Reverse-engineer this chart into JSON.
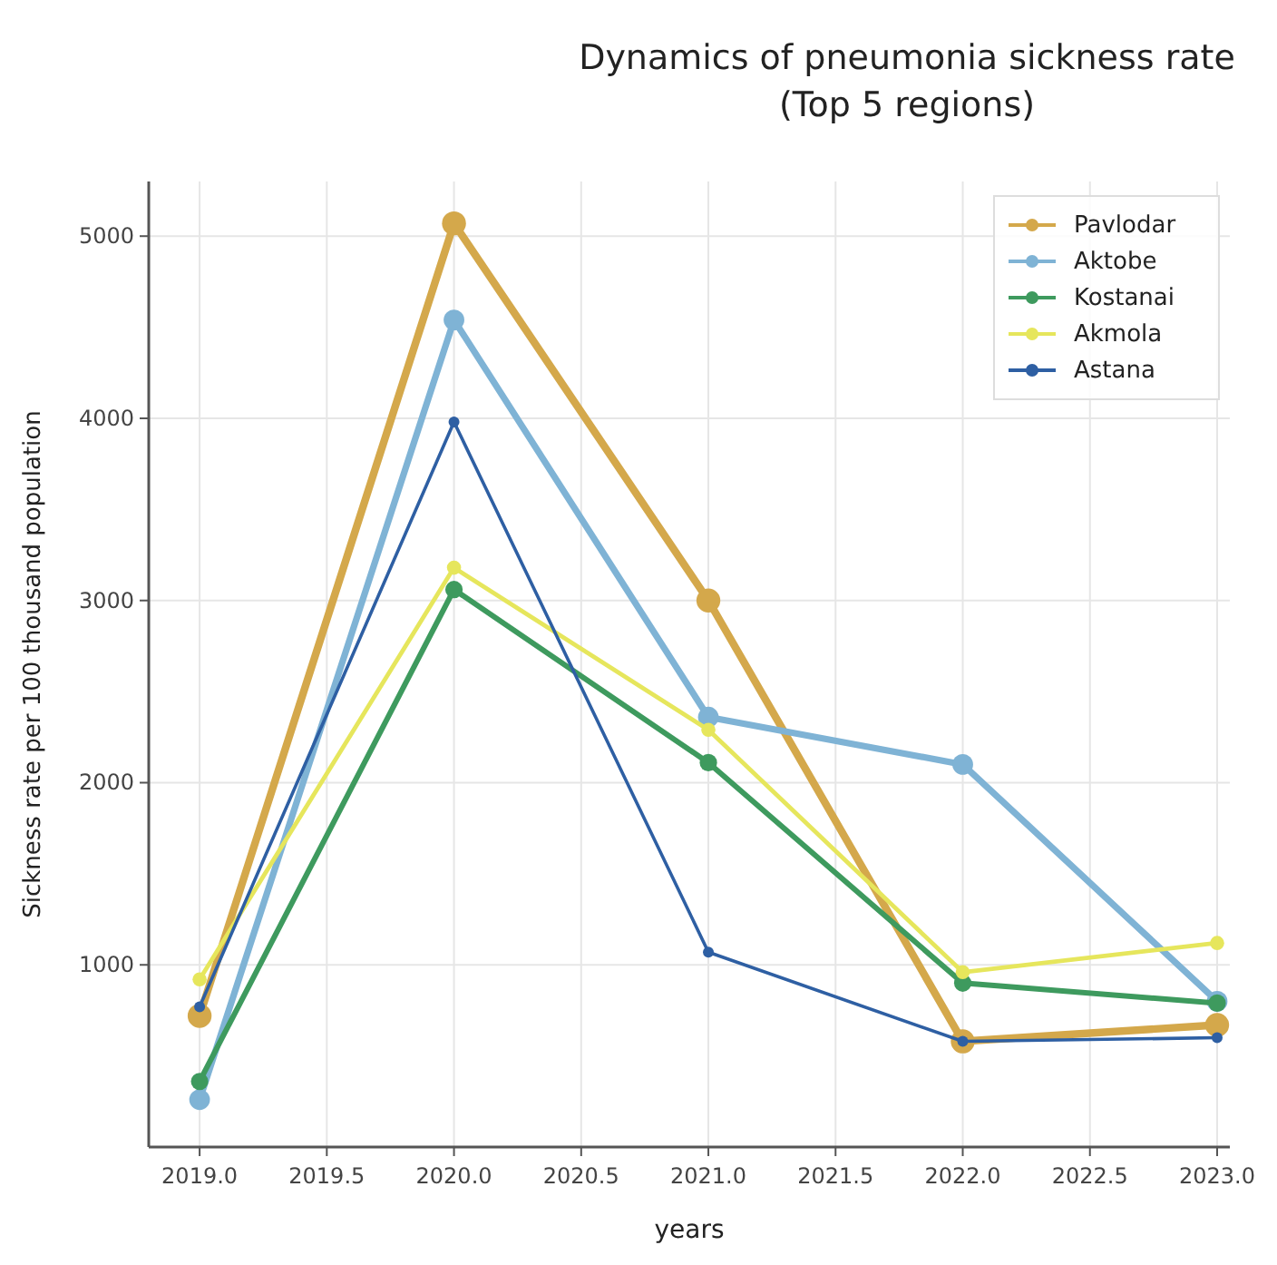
{
  "chart_data": {
    "type": "line",
    "title": "Dynamics of pneumonia sickness rate\n(Top 5 regions)",
    "xlabel": "years",
    "ylabel": "Sickness rate per 100 thousand population",
    "x": [
      2019,
      2020,
      2021,
      2022,
      2023
    ],
    "series": [
      {
        "name": "Pavlodar",
        "color": "#d4a84b",
        "values": [
          720,
          5070,
          3000,
          580,
          670
        ]
      },
      {
        "name": "Aktobe",
        "color": "#7fb3d5",
        "values": [
          260,
          4540,
          2360,
          2100,
          800
        ]
      },
      {
        "name": "Kostanai",
        "color": "#3e9a5e",
        "values": [
          360,
          3060,
          2110,
          900,
          790
        ]
      },
      {
        "name": "Akmola",
        "color": "#e6e65c",
        "values": [
          920,
          3180,
          2290,
          960,
          1120
        ]
      },
      {
        "name": "Astana",
        "color": "#2e5fa3",
        "values": [
          770,
          3980,
          1070,
          580,
          600
        ]
      }
    ],
    "xlim": [
      2018.8,
      2023.05
    ],
    "xticks": [
      {
        "value": 2019,
        "label": "2019.0"
      },
      {
        "value": 2019.5,
        "label": "2019.5"
      },
      {
        "value": 2020,
        "label": "2020.0"
      },
      {
        "value": 2020.5,
        "label": "2020.5"
      },
      {
        "value": 2021,
        "label": "2021.0"
      },
      {
        "value": 2021.5,
        "label": "2021.5"
      },
      {
        "value": 2022,
        "label": "2022.0"
      },
      {
        "value": 2022.5,
        "label": "2022.5"
      },
      {
        "value": 2023,
        "label": "2023.0"
      }
    ],
    "ylim": [
      0,
      5300
    ],
    "yticks": [
      1000,
      2000,
      3000,
      4000,
      5000
    ],
    "grid": true,
    "legend": "top right",
    "marker": "circle",
    "line_style": "solid"
  }
}
